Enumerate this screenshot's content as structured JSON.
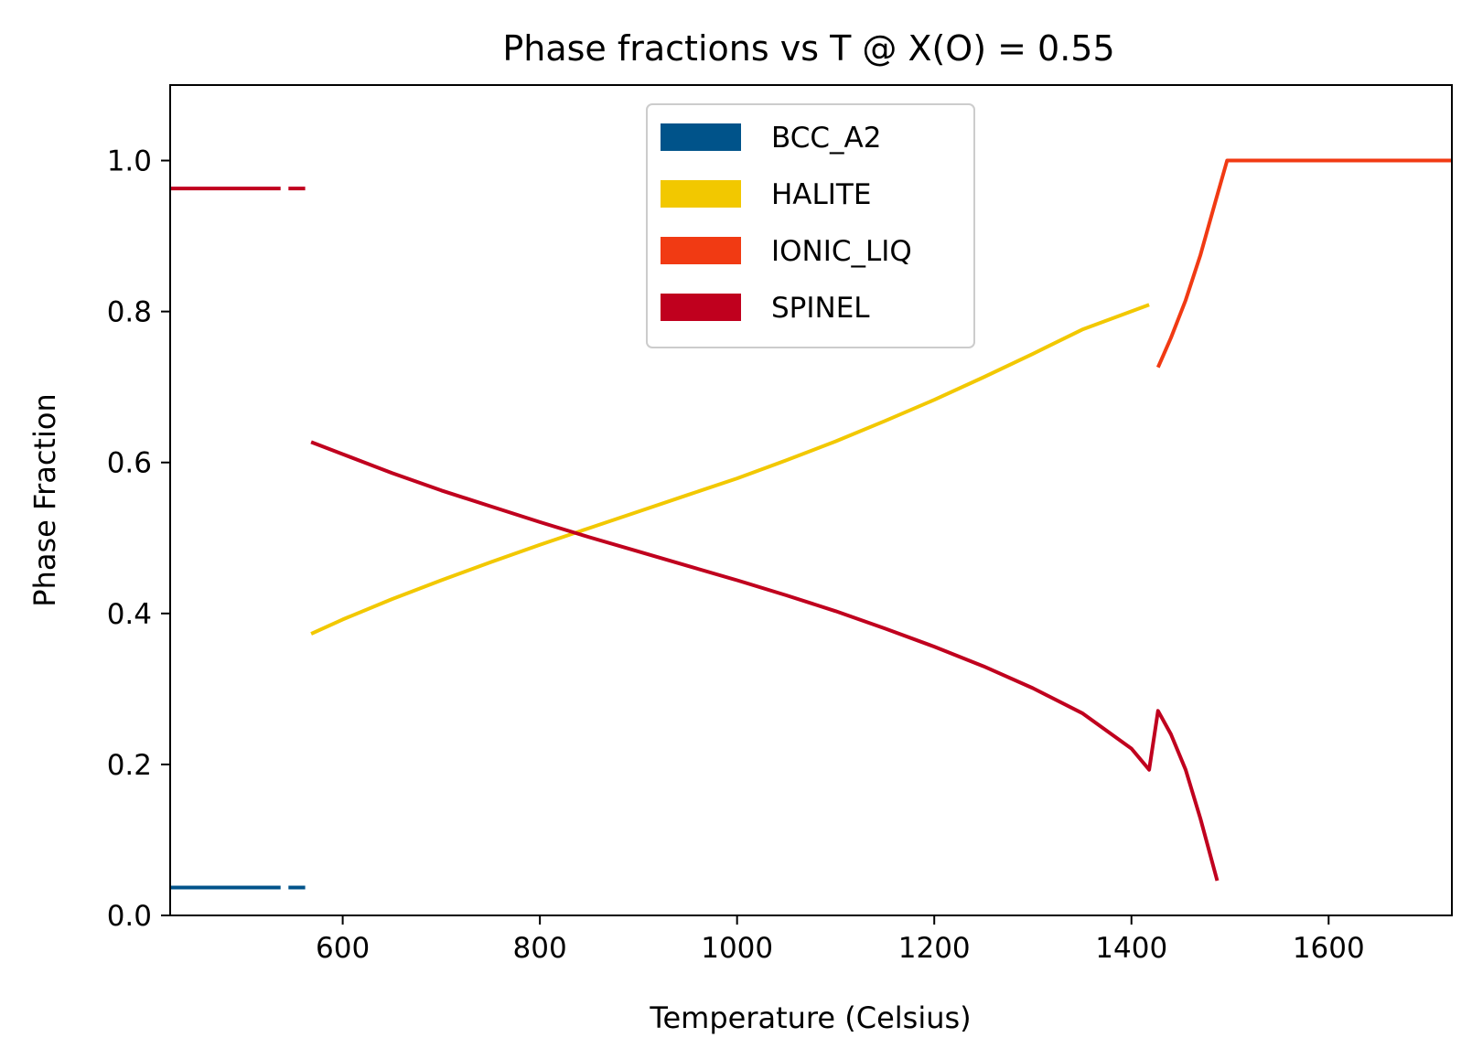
{
  "chart_data": {
    "type": "line",
    "title": "Phase fractions vs T @ X(O) = 0.55",
    "xlabel": "Temperature (Celsius)",
    "ylabel": "Phase Fraction",
    "xlim": [
      425,
      1725
    ],
    "ylim": [
      0,
      1.1
    ],
    "xticks": [
      600,
      800,
      1000,
      1200,
      1400,
      1600
    ],
    "xtick_labels": [
      "600",
      "800",
      "1000",
      "1200",
      "1400",
      "1600"
    ],
    "yticks": [
      0,
      0.2,
      0.4,
      0.6,
      0.8,
      1.0
    ],
    "ytick_labels": [
      "0.0",
      "0.2",
      "0.4",
      "0.6",
      "0.8",
      "1.0"
    ],
    "grid": false,
    "legend": {
      "position": "top-center"
    },
    "series": [
      {
        "name": "BCC_A2",
        "color": "#00538a",
        "segments": [
          [
            [
              425,
              0.037
            ],
            [
              537,
              0.037
            ]
          ],
          [
            [
              545,
              0.037
            ],
            [
              562,
              0.037
            ]
          ]
        ]
      },
      {
        "name": "HALITE",
        "color": "#f2c800",
        "segments": [
          [
            [
              568,
              0.373
            ],
            [
              600,
              0.392
            ],
            [
              650,
              0.419
            ],
            [
              700,
              0.444
            ],
            [
              750,
              0.468
            ],
            [
              800,
              0.491
            ],
            [
              850,
              0.513
            ],
            [
              900,
              0.535
            ],
            [
              950,
              0.557
            ],
            [
              1000,
              0.579
            ],
            [
              1050,
              0.603
            ],
            [
              1100,
              0.628
            ],
            [
              1150,
              0.655
            ],
            [
              1200,
              0.683
            ],
            [
              1250,
              0.713
            ],
            [
              1300,
              0.744
            ],
            [
              1350,
              0.776
            ],
            [
              1418,
              0.809
            ]
          ]
        ]
      },
      {
        "name": "IONIC_LIQ",
        "color": "#f13a13",
        "segments": [
          [
            [
              1427,
              0.726
            ],
            [
              1440,
              0.765
            ],
            [
              1455,
              0.815
            ],
            [
              1470,
              0.875
            ],
            [
              1485,
              0.945
            ],
            [
              1497,
              1.0
            ],
            [
              1725,
              1.0
            ]
          ]
        ]
      },
      {
        "name": "SPINEL",
        "color": "#c0001e",
        "segments": [
          [
            [
              425,
              0.963
            ],
            [
              537,
              0.963
            ]
          ],
          [
            [
              545,
              0.963
            ],
            [
              562,
              0.963
            ]
          ],
          [
            [
              568,
              0.627
            ],
            [
              600,
              0.611
            ],
            [
              650,
              0.586
            ],
            [
              700,
              0.563
            ],
            [
              750,
              0.542
            ],
            [
              800,
              0.521
            ],
            [
              850,
              0.501
            ],
            [
              900,
              0.482
            ],
            [
              950,
              0.463
            ],
            [
              1000,
              0.444
            ],
            [
              1050,
              0.424
            ],
            [
              1100,
              0.403
            ],
            [
              1150,
              0.38
            ],
            [
              1200,
              0.356
            ],
            [
              1250,
              0.33
            ],
            [
              1300,
              0.301
            ],
            [
              1350,
              0.268
            ],
            [
              1400,
              0.221
            ],
            [
              1418,
              0.193
            ],
            [
              1427,
              0.271
            ],
            [
              1440,
              0.24
            ],
            [
              1455,
              0.193
            ],
            [
              1470,
              0.128
            ],
            [
              1487,
              0.046
            ]
          ]
        ]
      }
    ]
  }
}
